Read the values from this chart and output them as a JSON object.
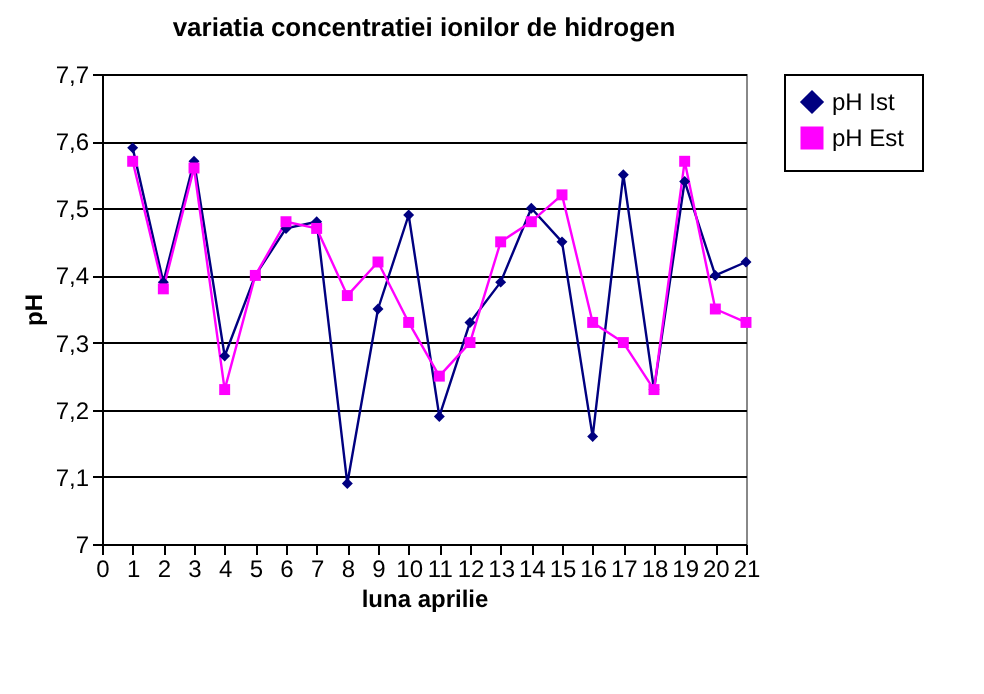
{
  "chart_data": {
    "type": "line",
    "title": "variatia concentratiei ionilor de hidrogen",
    "xlabel": "luna aprilie",
    "ylabel": "pH",
    "xlim": [
      0,
      21
    ],
    "xticks": [
      0,
      1,
      2,
      3,
      4,
      5,
      6,
      7,
      8,
      9,
      10,
      11,
      12,
      13,
      14,
      15,
      16,
      17,
      18,
      19,
      20,
      21
    ],
    "ylim": [
      7,
      7.7
    ],
    "yticks": [
      7,
      {
        "value": 7.1,
        "label": "7,1"
      },
      {
        "value": 7.2,
        "label": "7,2"
      },
      {
        "value": 7.3,
        "label": "7,3"
      },
      {
        "value": 7.4,
        "label": "7,4"
      },
      {
        "value": 7.5,
        "label": "7,5"
      },
      {
        "value": 7.6,
        "label": "7,6"
      },
      {
        "value": 7.7,
        "label": "7,7"
      }
    ],
    "grid": "y",
    "legend": "right",
    "line_style": "solid",
    "series": [
      {
        "name": "pH Ist",
        "color": "#000080",
        "marker": "diamond",
        "x": [
          1,
          2,
          3,
          4,
          5,
          6,
          7,
          8,
          9,
          10,
          11,
          12,
          13,
          14,
          15,
          16,
          17,
          18,
          19,
          20,
          21
        ],
        "values": [
          7.59,
          7.39,
          7.57,
          7.28,
          7.4,
          7.47,
          7.48,
          7.09,
          7.35,
          7.49,
          7.19,
          7.33,
          7.39,
          7.5,
          7.45,
          7.16,
          7.55,
          7.23,
          7.54,
          7.4,
          7.42
        ]
      },
      {
        "name": "pH Est",
        "color": "#ff00ff",
        "marker": "square",
        "x": [
          1,
          2,
          3,
          4,
          5,
          6,
          7,
          8,
          9,
          10,
          11,
          12,
          13,
          14,
          15,
          16,
          17,
          18,
          19,
          20,
          21
        ],
        "values": [
          7.57,
          7.38,
          7.56,
          7.23,
          7.4,
          7.48,
          7.47,
          7.37,
          7.42,
          7.33,
          7.25,
          7.3,
          7.45,
          7.48,
          7.52,
          7.33,
          7.3,
          7.23,
          7.57,
          7.35,
          7.33
        ]
      }
    ]
  }
}
